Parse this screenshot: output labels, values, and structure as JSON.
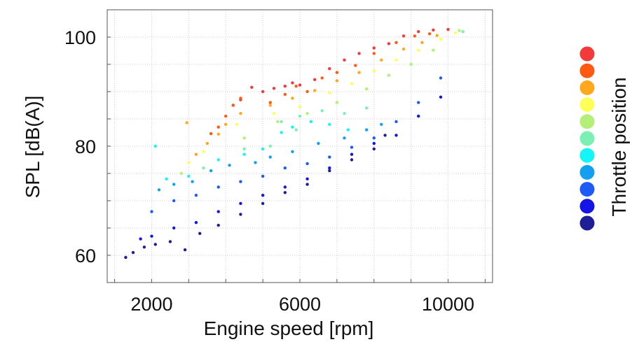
{
  "chart_data": {
    "type": "scatter",
    "xlabel": "Engine speed [rpm]",
    "ylabel": "SPL [dB(A)]",
    "xlim": [
      800,
      11200
    ],
    "ylim": [
      55,
      105
    ],
    "xticks": [
      2000,
      6000,
      10000
    ],
    "yticks": [
      60,
      80,
      100
    ],
    "grid": true,
    "legend": {
      "title": "Throttle position",
      "placement": "right",
      "colors": [
        "#f23a3a",
        "#ff5a14",
        "#ffa81e",
        "#ffff5a",
        "#b4f078",
        "#7cf0b4",
        "#14f5f5",
        "#14a0f0",
        "#1e5af5",
        "#1414e6",
        "#1e1e96"
      ]
    },
    "series": [
      {
        "points": [
          [
            4700,
            90.8
          ],
          [
            5000,
            90.0
          ],
          [
            5300,
            90.6
          ],
          [
            5600,
            91.0
          ],
          [
            6000,
            91.2
          ],
          [
            6400,
            92.2
          ],
          [
            6800,
            94.2
          ],
          [
            7200,
            95.8
          ],
          [
            7600,
            97.0
          ],
          [
            8000,
            98.0
          ],
          [
            8400,
            98.8
          ],
          [
            8800,
            100.2
          ],
          [
            9200,
            101.0
          ],
          [
            9600,
            101.3
          ],
          [
            10000,
            101.4
          ],
          [
            4400,
            88.5
          ],
          [
            4200,
            87.5
          ],
          [
            5800,
            91.6
          ]
        ]
      },
      {
        "points": [
          [
            3800,
            83.5
          ],
          [
            4000,
            85.5
          ],
          [
            4200,
            87.5
          ],
          [
            4400,
            88.8
          ],
          [
            5200,
            88.0
          ],
          [
            5600,
            89.5
          ],
          [
            6200,
            90.0
          ],
          [
            6600,
            92.5
          ],
          [
            7000,
            93.5
          ],
          [
            7500,
            94.8
          ],
          [
            8000,
            97.0
          ],
          [
            8600,
            99.0
          ],
          [
            9100,
            100.2
          ],
          [
            9500,
            100.6
          ],
          [
            3600,
            82.3
          ],
          [
            5900,
            91.0
          ]
        ]
      },
      {
        "points": [
          [
            3200,
            78.5
          ],
          [
            3500,
            80.5
          ],
          [
            3800,
            82.2
          ],
          [
            4000,
            84.0
          ],
          [
            4400,
            86.0
          ],
          [
            5200,
            87.5
          ],
          [
            5800,
            88.8
          ],
          [
            6400,
            90.2
          ],
          [
            7000,
            92.0
          ],
          [
            7600,
            93.5
          ],
          [
            8200,
            95.8
          ],
          [
            8800,
            97.8
          ],
          [
            9300,
            99.0
          ],
          [
            9700,
            100.3
          ],
          [
            2950,
            84.3
          ]
        ]
      },
      {
        "points": [
          [
            3000,
            77.0
          ],
          [
            3400,
            79.0
          ],
          [
            4300,
            84.0
          ],
          [
            5300,
            86.0
          ],
          [
            6000,
            87.2
          ],
          [
            6800,
            89.8
          ],
          [
            7400,
            91.5
          ],
          [
            8000,
            93.8
          ],
          [
            8600,
            95.8
          ],
          [
            9200,
            97.6
          ],
          [
            9800,
            99.6
          ],
          [
            10200,
            100.8
          ]
        ]
      },
      {
        "points": [
          [
            2800,
            75.0
          ],
          [
            4500,
            81.5
          ],
          [
            5400,
            84.5
          ],
          [
            6200,
            86.0
          ],
          [
            7000,
            88.0
          ],
          [
            7800,
            90.5
          ],
          [
            8400,
            93.0
          ],
          [
            9000,
            95.0
          ],
          [
            9600,
            97.6
          ],
          [
            10300,
            101.2
          ]
        ]
      },
      {
        "points": [
          [
            3400,
            76.0
          ],
          [
            4500,
            79.5
          ],
          [
            5500,
            84.5
          ],
          [
            6000,
            85.5
          ],
          [
            6600,
            86.5
          ],
          [
            7200,
            86.0
          ],
          [
            5900,
            83.0
          ],
          [
            5200,
            80.0
          ],
          [
            7800,
            87.0
          ],
          [
            10400,
            101.0
          ]
        ]
      },
      {
        "points": [
          [
            2400,
            74.0
          ],
          [
            3000,
            74.5
          ],
          [
            3800,
            77.5
          ],
          [
            4500,
            78.5
          ],
          [
            5000,
            79.5
          ],
          [
            5800,
            83.5
          ],
          [
            6300,
            84.5
          ],
          [
            6800,
            84.0
          ],
          [
            5500,
            82.5
          ],
          [
            2100,
            80.0
          ],
          [
            7300,
            83.0
          ]
        ]
      },
      {
        "points": [
          [
            2200,
            72.0
          ],
          [
            2600,
            73.0
          ],
          [
            3100,
            73.5
          ],
          [
            3600,
            75.5
          ],
          [
            4100,
            76.5
          ],
          [
            4800,
            77.0
          ],
          [
            5200,
            78.0
          ],
          [
            5800,
            79.0
          ],
          [
            6500,
            80.5
          ],
          [
            7200,
            81.5
          ],
          [
            7800,
            83.0
          ],
          [
            8200,
            84.0
          ]
        ]
      },
      {
        "points": [
          [
            2000,
            68.0
          ],
          [
            2600,
            70.0
          ],
          [
            3200,
            71.0
          ],
          [
            3800,
            72.5
          ],
          [
            4400,
            73.5
          ],
          [
            5000,
            74.5
          ],
          [
            5600,
            76.0
          ],
          [
            6200,
            76.8
          ],
          [
            6800,
            78.0
          ],
          [
            7400,
            79.8
          ],
          [
            8000,
            81.5
          ],
          [
            8600,
            84.5
          ],
          [
            9200,
            88.0
          ],
          [
            9800,
            92.5
          ]
        ]
      },
      {
        "points": [
          [
            1700,
            63.0
          ],
          [
            2000,
            63.5
          ],
          [
            2600,
            65.0
          ],
          [
            3200,
            66.0
          ],
          [
            3800,
            68.0
          ],
          [
            4400,
            69.5
          ],
          [
            5000,
            71.0
          ],
          [
            5600,
            72.5
          ],
          [
            6200,
            74.0
          ],
          [
            6800,
            76.0
          ],
          [
            7400,
            78.5
          ],
          [
            8000,
            80.5
          ],
          [
            8600,
            82.0
          ],
          [
            9200,
            85.5
          ],
          [
            9800,
            89.0
          ]
        ]
      },
      {
        "points": [
          [
            1300,
            59.6
          ],
          [
            1500,
            60.5
          ],
          [
            1800,
            61.5
          ],
          [
            2100,
            62.0
          ],
          [
            2500,
            62.5
          ],
          [
            2900,
            61.0
          ],
          [
            3300,
            64.0
          ],
          [
            3800,
            65.5
          ],
          [
            4400,
            67.5
          ],
          [
            5000,
            69.5
          ],
          [
            5600,
            71.5
          ],
          [
            6200,
            73.0
          ],
          [
            6800,
            75.5
          ],
          [
            7400,
            77.5
          ],
          [
            8000,
            79.5
          ],
          [
            8300,
            82.0
          ]
        ]
      }
    ]
  }
}
